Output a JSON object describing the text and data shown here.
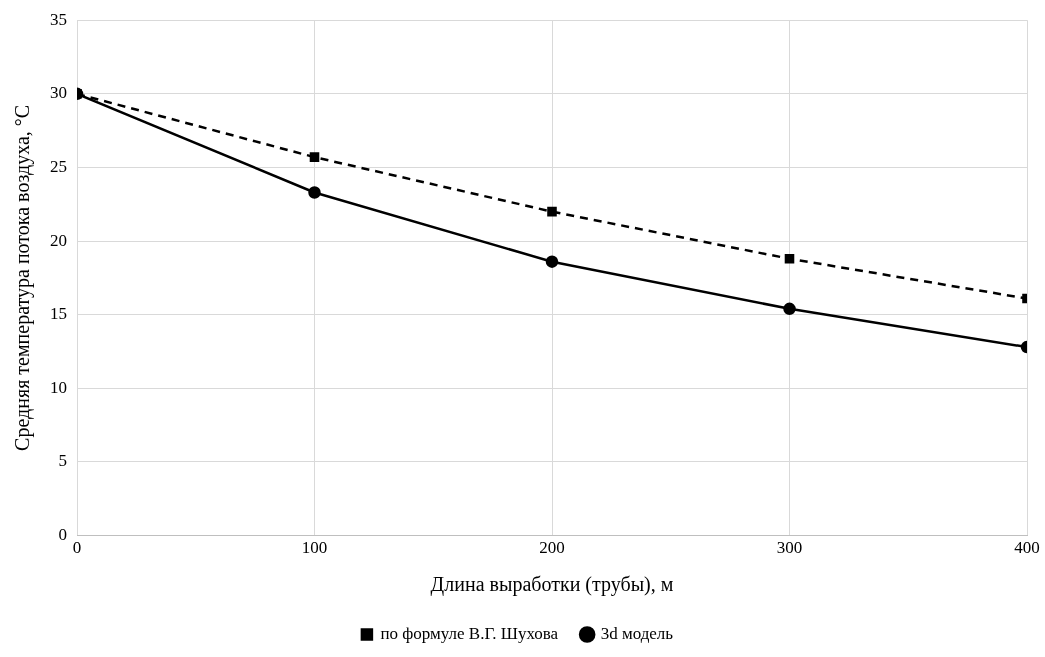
{
  "chart_data": {
    "type": "line",
    "xlabel": "Длина выработки (трубы), м",
    "ylabel": "Средняя температура потока воздуха, °С",
    "x": [
      0,
      100,
      200,
      300,
      400
    ],
    "series": [
      {
        "name": "3d модель",
        "color": "#000000",
        "marker": "circle",
        "line_style": "solid",
        "values": [
          30,
          23.3,
          18.6,
          15.4,
          12.8
        ]
      },
      {
        "name": "по формуле В.Г. Шухова",
        "color": "#000000",
        "marker": "square",
        "line_style": "dashed",
        "values": [
          30,
          25.7,
          22.0,
          18.8,
          16.1
        ]
      }
    ],
    "xlim": [
      0,
      400
    ],
    "xticks": [
      0,
      100,
      200,
      300,
      400
    ],
    "ylim": [
      0,
      35
    ],
    "yticks": [
      0,
      5,
      10,
      15,
      20,
      25,
      30,
      35
    ],
    "grid": true,
    "legend": "bottom"
  }
}
